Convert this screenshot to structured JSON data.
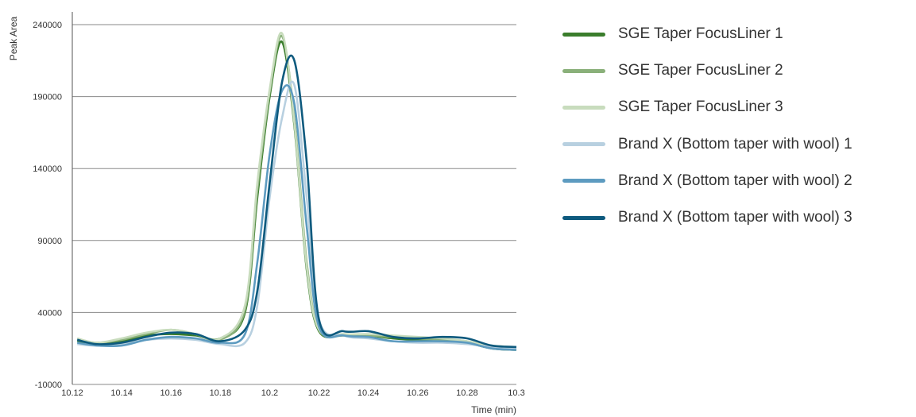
{
  "chart_data": {
    "type": "line",
    "xlabel": "Time (min)",
    "ylabel": "Peak Area",
    "xlim": [
      10.12,
      10.3
    ],
    "ylim": [
      -10000,
      240000
    ],
    "x_ticks": [
      "10.12",
      "10.14",
      "10.16",
      "10.18",
      "10.2",
      "10.22",
      "10.24",
      "10.26",
      "10.28",
      "10.3"
    ],
    "y_ticks": [
      "-10000",
      "40000",
      "90000",
      "140000",
      "190000",
      "240000"
    ],
    "grid": "horizontal",
    "legend_position": "right",
    "x": [
      10.122,
      10.13,
      10.14,
      10.15,
      10.16,
      10.17,
      10.18,
      10.19,
      10.195,
      10.2,
      10.205,
      10.21,
      10.215,
      10.22,
      10.23,
      10.24,
      10.25,
      10.26,
      10.27,
      10.28,
      10.29,
      10.3
    ],
    "series": [
      {
        "name": "SGE Taper FocusLiner 1",
        "color": "#3a7d2c",
        "values": [
          20000,
          18000,
          20000,
          24000,
          25000,
          24000,
          22000,
          40000,
          120000,
          190000,
          228000,
          170000,
          70000,
          27000,
          24000,
          24000,
          22000,
          21000,
          21000,
          19000,
          15000,
          14000
        ]
      },
      {
        "name": "SGE Taper FocusLiner 2",
        "color": "#8ab07a",
        "values": [
          21000,
          19000,
          21000,
          25000,
          28000,
          25000,
          21000,
          42000,
          125000,
          193000,
          232000,
          175000,
          75000,
          28000,
          24000,
          24000,
          23000,
          22000,
          21000,
          20000,
          16000,
          15000
        ]
      },
      {
        "name": "SGE Taper FocusLiner 3",
        "color": "#c8dcbd",
        "values": [
          22000,
          19000,
          22000,
          26000,
          28000,
          25000,
          22000,
          45000,
          130000,
          195000,
          234000,
          172000,
          72000,
          28000,
          25000,
          25000,
          24000,
          23000,
          22000,
          20000,
          17000,
          16000
        ]
      },
      {
        "name": "Brand X (Bottom taper with wool) 1",
        "color": "#b8d0e0",
        "values": [
          18000,
          17000,
          18000,
          21000,
          22000,
          21000,
          18000,
          19000,
          45000,
          120000,
          175000,
          198000,
          120000,
          35000,
          24000,
          22000,
          20000,
          19000,
          19000,
          18000,
          16000,
          15000
        ]
      },
      {
        "name": "Brand X (Bottom taper with wool) 2",
        "color": "#5d9bc0",
        "values": [
          19000,
          17000,
          17000,
          21000,
          23000,
          22000,
          19000,
          25000,
          75000,
          150000,
          194000,
          185000,
          100000,
          30000,
          24000,
          23000,
          20000,
          20000,
          20000,
          19000,
          15000,
          14000
        ]
      },
      {
        "name": "Brand X (Bottom taper with wool) 3",
        "color": "#0e5a7e",
        "values": [
          21000,
          18000,
          19000,
          23000,
          26000,
          25000,
          20000,
          28000,
          55000,
          130000,
          200000,
          215000,
          145000,
          35000,
          27000,
          27000,
          23000,
          22000,
          23000,
          22000,
          17000,
          16000
        ]
      }
    ]
  }
}
